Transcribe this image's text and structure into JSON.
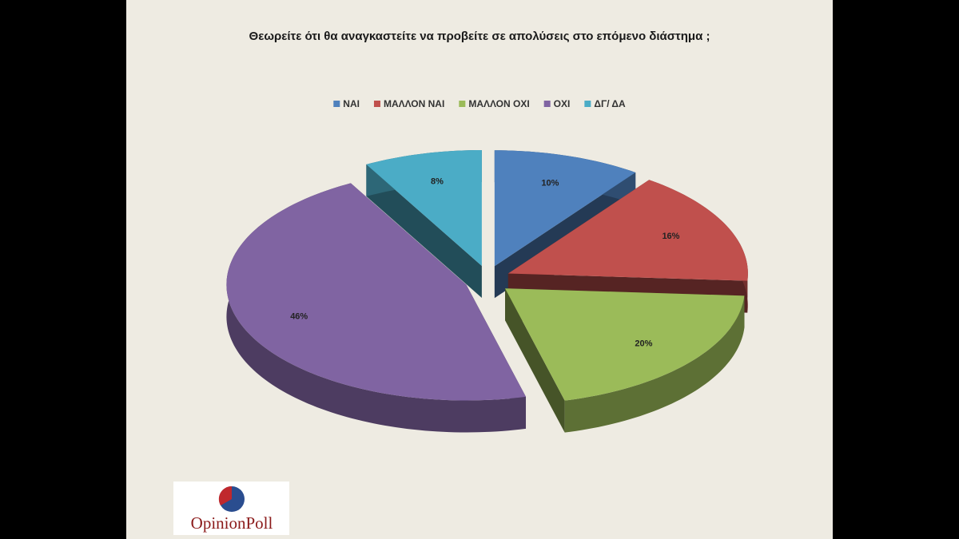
{
  "chart_data": {
    "type": "pie3d",
    "title": "Θεωρείτε ότι θα αναγκαστείτε να προβείτε σε απολύσεις στο επόμενο διάστημα ;",
    "categories": [
      "ΝΑΙ",
      "ΜΑΛΛΟΝ ΝΑΙ",
      "ΜΑΛΛΟΝ ΟΧΙ",
      "ΟΧΙ",
      "ΔΓ/ ΔΑ"
    ],
    "values": [
      10,
      16,
      20,
      46,
      8
    ],
    "value_labels": [
      "10%",
      "16%",
      "20%",
      "46%",
      "8%"
    ],
    "colors": [
      "#4f81bd",
      "#c0504d",
      "#9bbb59",
      "#8064a2",
      "#4bacc6"
    ],
    "legend": "top"
  },
  "logo_text": "OpinionPoll"
}
